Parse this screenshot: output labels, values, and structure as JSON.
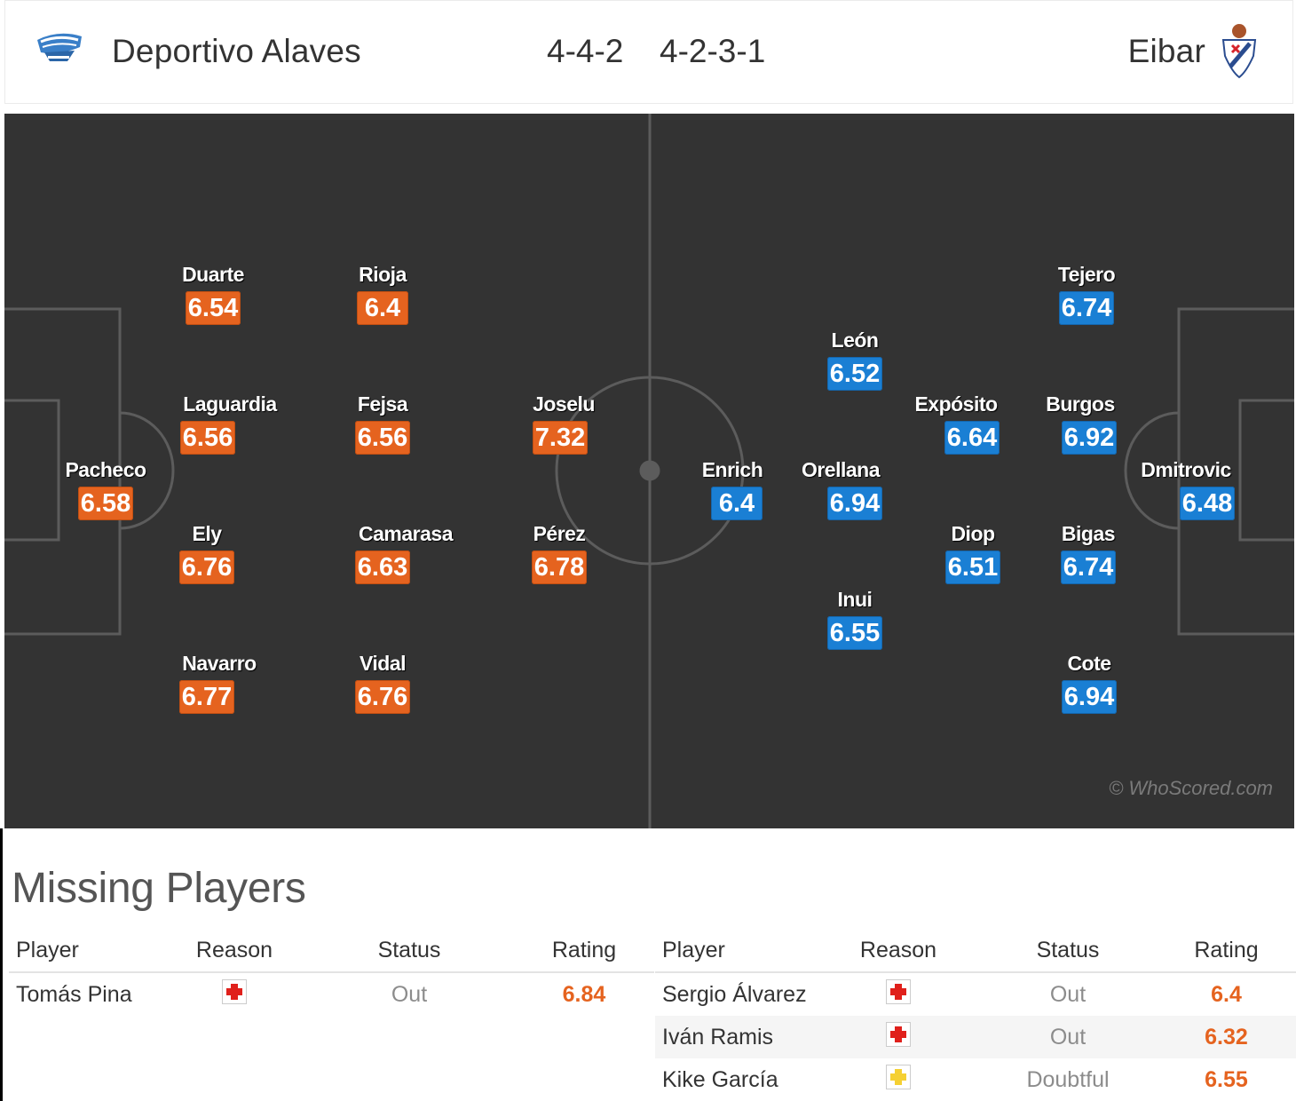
{
  "header": {
    "home_team": "Deportivo Alaves",
    "away_team": "Eibar",
    "home_formation": "4-4-2",
    "away_formation": "4-2-3-1",
    "home_crest_icon": "alaves-crest-icon",
    "away_crest_icon": "eibar-crest-icon"
  },
  "colors": {
    "pitch": "#333333",
    "home_rating": "#e5631f",
    "away_rating": "#1a7fd4",
    "injury": "#e0201b",
    "doubtful": "#f5d033"
  },
  "pitch": {
    "watermark": "© WhoScored.com",
    "home_players": [
      {
        "name": "Pacheco",
        "rating": "6.58"
      },
      {
        "name": "Duarte",
        "rating": "6.54"
      },
      {
        "name": "Laguardia",
        "rating": "6.56"
      },
      {
        "name": "Ely",
        "rating": "6.76"
      },
      {
        "name": "Navarro",
        "rating": "6.77"
      },
      {
        "name": "Rioja",
        "rating": "6.4"
      },
      {
        "name": "Fejsa",
        "rating": "6.56"
      },
      {
        "name": "Camarasa",
        "rating": "6.63"
      },
      {
        "name": "Vidal",
        "rating": "6.76"
      },
      {
        "name": "Joselu",
        "rating": "7.32"
      },
      {
        "name": "Pérez",
        "rating": "6.78"
      }
    ],
    "away_players": [
      {
        "name": "Tejero",
        "rating": "6.74"
      },
      {
        "name": "León",
        "rating": "6.52"
      },
      {
        "name": "Expósito",
        "rating": "6.64"
      },
      {
        "name": "Burgos",
        "rating": "6.92"
      },
      {
        "name": "Enrich",
        "rating": "6.4"
      },
      {
        "name": "Orellana",
        "rating": "6.94"
      },
      {
        "name": "Dmitrovic",
        "rating": "6.48"
      },
      {
        "name": "Diop",
        "rating": "6.51"
      },
      {
        "name": "Bigas",
        "rating": "6.74"
      },
      {
        "name": "Inui",
        "rating": "6.55"
      },
      {
        "name": "Cote",
        "rating": "6.94"
      }
    ]
  },
  "missing": {
    "title": "Missing Players",
    "headers": {
      "player": "Player",
      "reason": "Reason",
      "status": "Status",
      "rating": "Rating"
    },
    "home": [
      {
        "player": "Tomás Pina",
        "reason_icon": "injury-cross-icon",
        "status": "Out",
        "rating": "6.84"
      }
    ],
    "away": [
      {
        "player": "Sergio Álvarez",
        "reason_icon": "injury-cross-icon",
        "status": "Out",
        "rating": "6.4"
      },
      {
        "player": "Iván Ramis",
        "reason_icon": "injury-cross-icon",
        "status": "Out",
        "rating": "6.32"
      },
      {
        "player": "Kike García",
        "reason_icon": "doubtful-cross-icon",
        "status": "Doubtful",
        "rating": "6.55"
      }
    ]
  }
}
